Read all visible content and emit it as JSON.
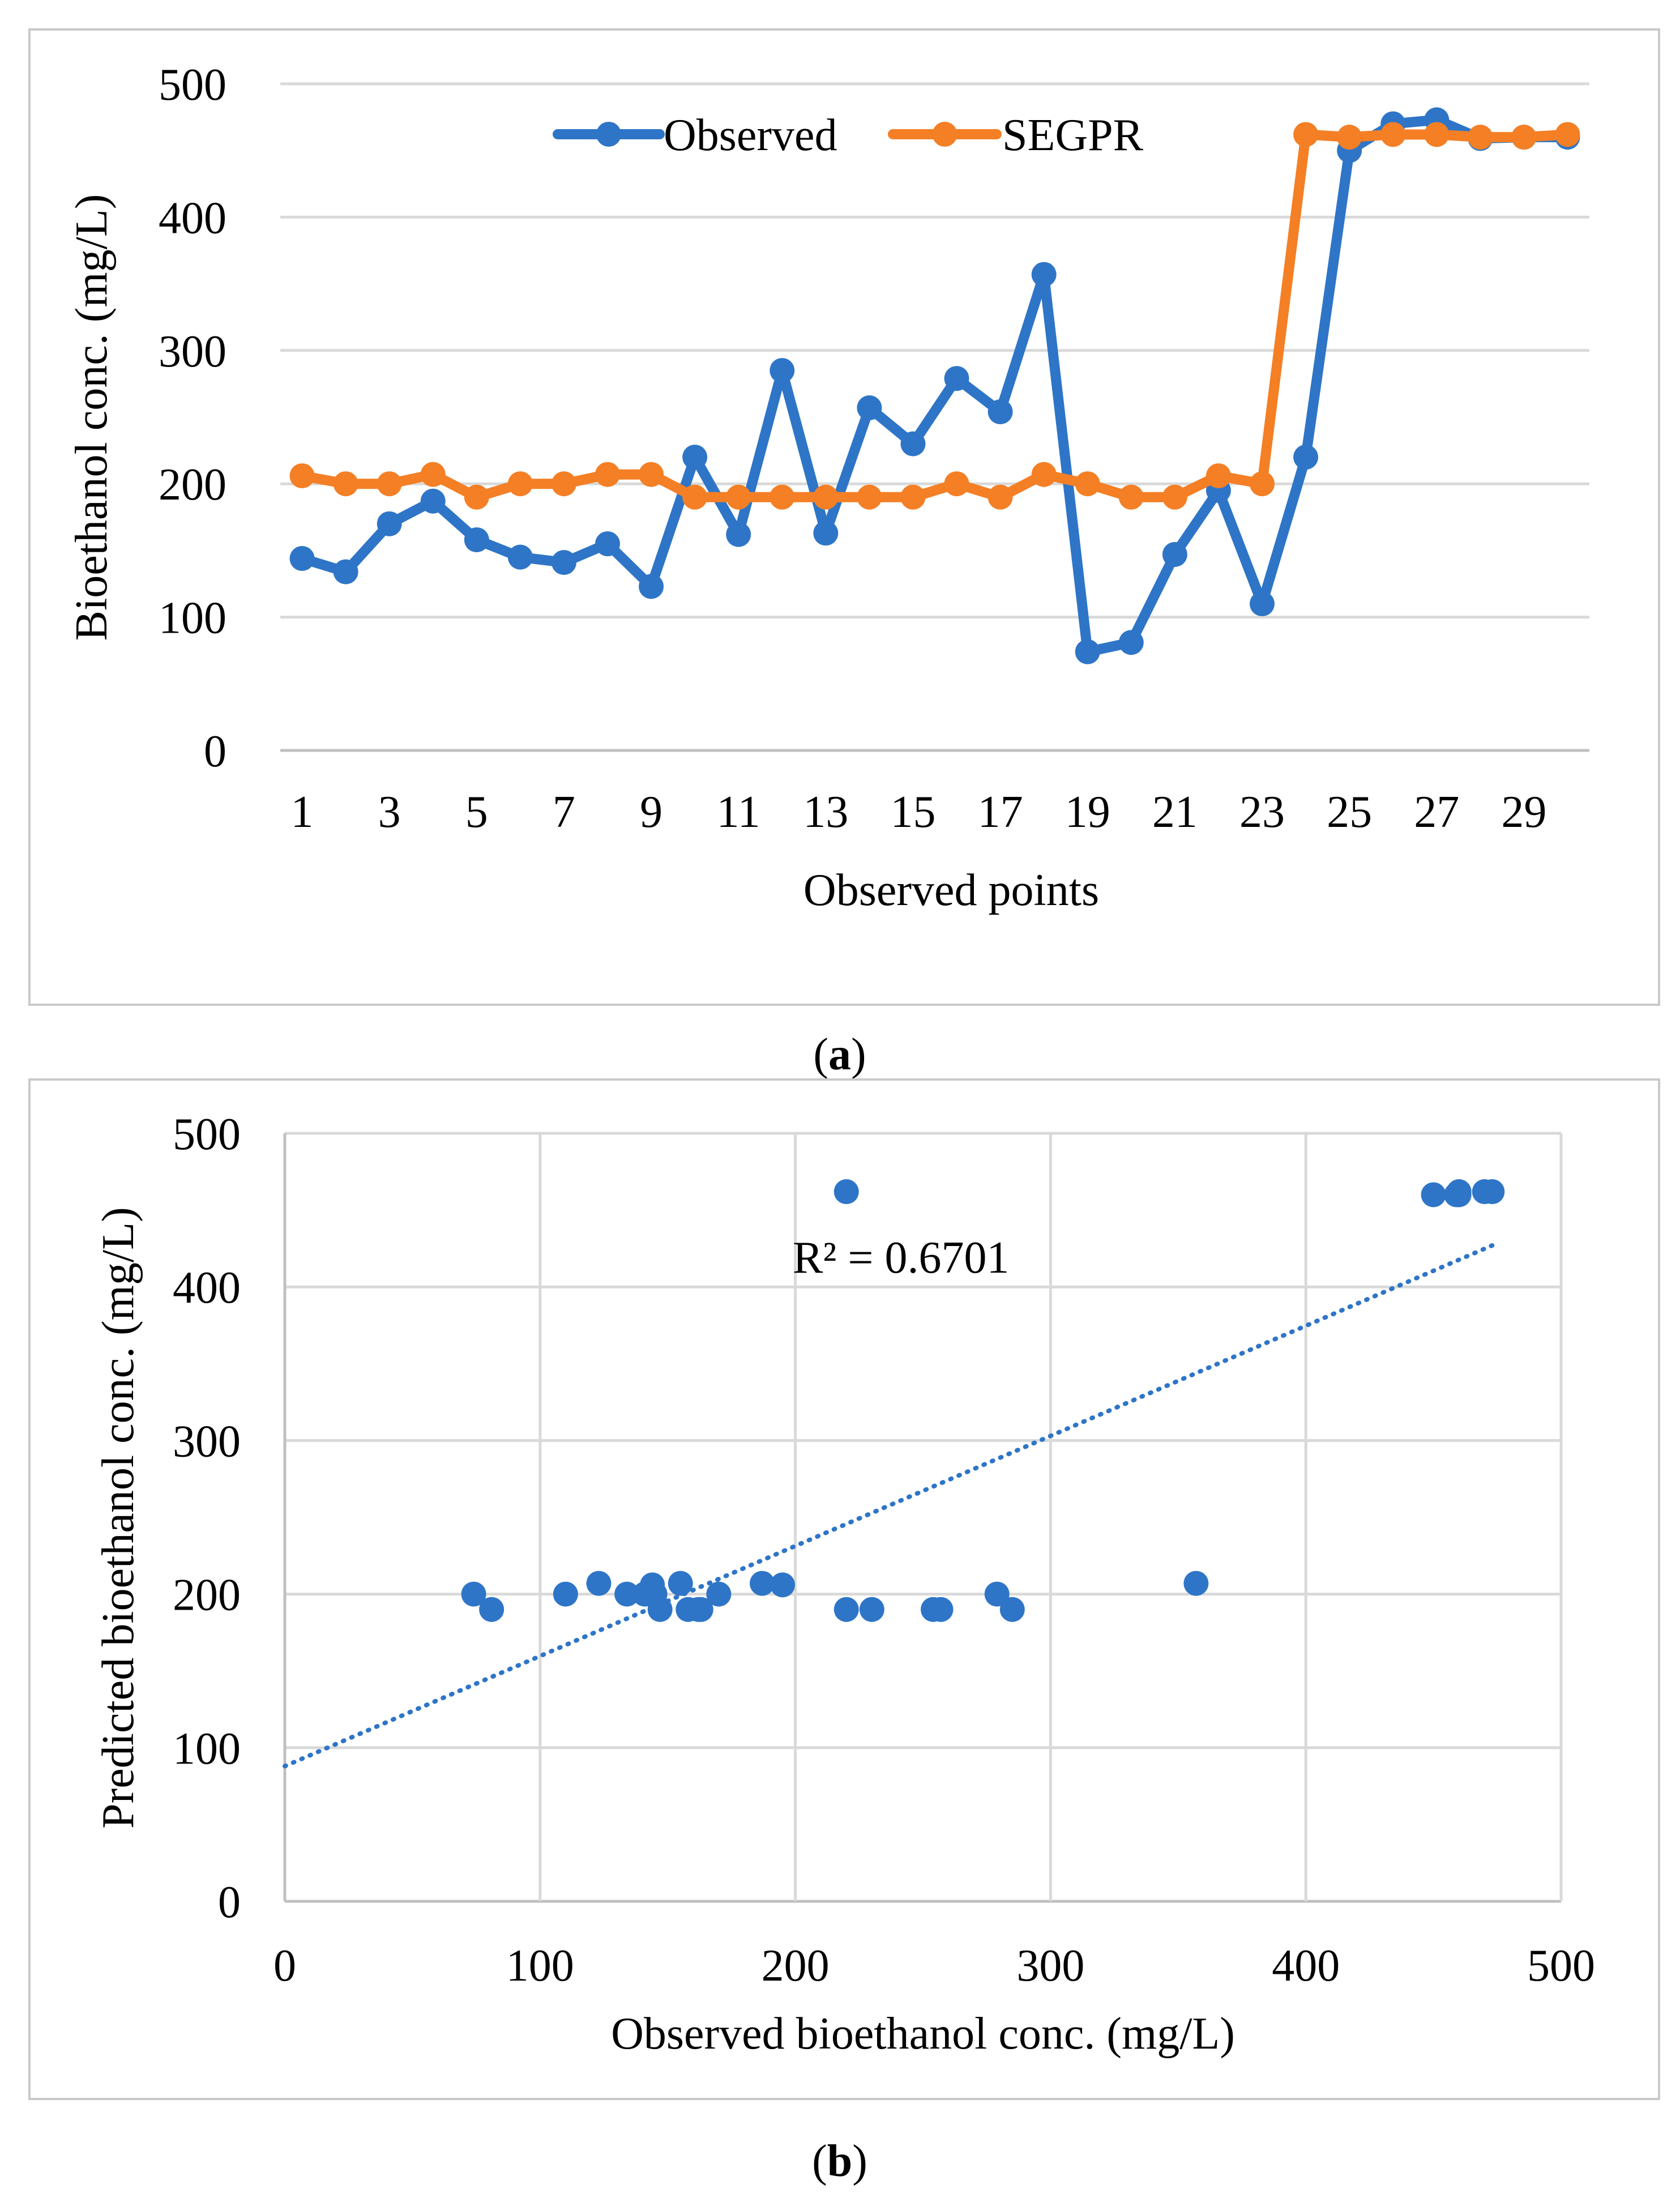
{
  "chart_data": [
    {
      "type": "line",
      "caption": "a",
      "ylabel": "Bioethanol conc. (mg/L)",
      "xlabel": "Observed points",
      "ylim": [
        0,
        500
      ],
      "yticks": [
        "0",
        "100",
        "200",
        "300",
        "400",
        "500"
      ],
      "xticks": [
        "1",
        "3",
        "5",
        "7",
        "9",
        "11",
        "13",
        "15",
        "17",
        "19",
        "21",
        "23",
        "25",
        "27",
        "29"
      ],
      "x": [
        1,
        2,
        3,
        4,
        5,
        6,
        7,
        8,
        9,
        10,
        11,
        12,
        13,
        14,
        15,
        16,
        17,
        18,
        19,
        20,
        21,
        22,
        23,
        24,
        25,
        26,
        27,
        28,
        29,
        30
      ],
      "legend_position": "top",
      "series": [
        {
          "name": "Observed",
          "color": "#2e75c7",
          "values": [
            144,
            134,
            170,
            187,
            158,
            145,
            141,
            155,
            123,
            220,
            162,
            285,
            163,
            257,
            230,
            279,
            254,
            357,
            74,
            81,
            147,
            195,
            110,
            220,
            450,
            470,
            473,
            459,
            460,
            460
          ]
        },
        {
          "name": "SEGPR",
          "color": "#f47f25",
          "values": [
            206,
            200,
            200,
            207,
            190,
            200,
            200,
            207,
            207,
            190,
            190,
            190,
            190,
            190,
            190,
            200,
            190,
            207,
            200,
            190,
            190,
            206,
            200,
            462,
            460,
            462,
            462,
            460,
            460,
            462
          ]
        }
      ]
    },
    {
      "type": "scatter",
      "caption": "b",
      "xlabel": "Observed bioethanol conc. (mg/L)",
      "ylabel": "Predicted bioethanol conc. (mg/L)",
      "xlim": [
        0,
        500
      ],
      "ylim": [
        0,
        500
      ],
      "xticks": [
        "0",
        "100",
        "200",
        "300",
        "400",
        "500"
      ],
      "yticks": [
        "0",
        "100",
        "200",
        "300",
        "400",
        "500"
      ],
      "color": "#2e75c7",
      "annotation": "R² = 0.6701",
      "trendline": {
        "style": "dotted",
        "x": [
          0,
          473
        ],
        "y": [
          88,
          427
        ]
      },
      "points": [
        [
          144,
          206
        ],
        [
          134,
          200
        ],
        [
          170,
          200
        ],
        [
          187,
          207
        ],
        [
          158,
          190
        ],
        [
          145,
          200
        ],
        [
          141,
          200
        ],
        [
          155,
          207
        ],
        [
          123,
          207
        ],
        [
          220,
          190
        ],
        [
          162,
          190
        ],
        [
          285,
          190
        ],
        [
          163,
          190
        ],
        [
          257,
          190
        ],
        [
          230,
          190
        ],
        [
          279,
          200
        ],
        [
          254,
          190
        ],
        [
          357,
          207
        ],
        [
          74,
          200
        ],
        [
          81,
          190
        ],
        [
          147,
          190
        ],
        [
          195,
          206
        ],
        [
          110,
          200
        ],
        [
          220,
          462
        ],
        [
          450,
          460
        ],
        [
          470,
          462
        ],
        [
          473,
          462
        ],
        [
          459,
          460
        ],
        [
          460,
          460
        ],
        [
          460,
          462
        ]
      ]
    }
  ]
}
